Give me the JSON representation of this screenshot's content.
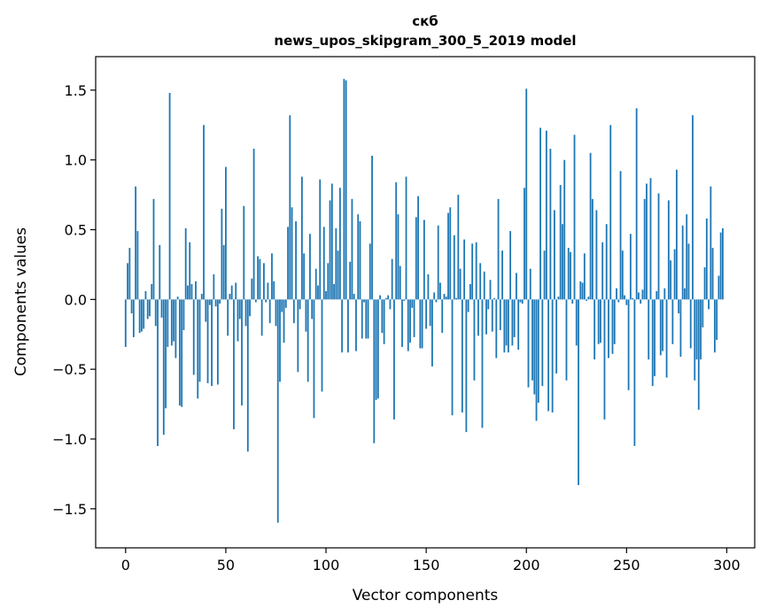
{
  "chart_data": {
    "type": "bar",
    "title_lines": [
      "скб",
      "news_upos_skipgram_300_5_2019 model"
    ],
    "xlabel": "Vector components",
    "ylabel": "Components values",
    "xlim": [
      -14.95,
      313.95
    ],
    "ylim": [
      -1.78,
      1.74
    ],
    "xticks": [
      0,
      50,
      100,
      150,
      200,
      250,
      300
    ],
    "xtick_labels": [
      "0",
      "50",
      "100",
      "150",
      "200",
      "250",
      "300"
    ],
    "yticks": [
      -1.5,
      -1.0,
      -0.5,
      0.0,
      0.5,
      1.0,
      1.5
    ],
    "ytick_labels": [
      "−1.5",
      "−1.0",
      "−0.5",
      "0.0",
      "0.5",
      "1.0",
      "1.5"
    ],
    "grid": false,
    "bar_color": "#1f77b4",
    "x_start": 0,
    "values": [
      -0.34,
      0.26,
      0.37,
      -0.1,
      -0.27,
      0.81,
      0.49,
      -0.24,
      -0.23,
      -0.21,
      0.06,
      -0.14,
      -0.12,
      0.11,
      0.72,
      -0.19,
      -1.05,
      0.39,
      -0.13,
      -0.97,
      -0.78,
      -0.34,
      1.48,
      -0.33,
      -0.3,
      -0.42,
      0.02,
      -0.76,
      -0.77,
      -0.22,
      0.51,
      0.1,
      0.41,
      0.11,
      -0.54,
      0.13,
      -0.71,
      -0.59,
      0.04,
      1.25,
      -0.16,
      -0.6,
      -0.04,
      -0.62,
      0.18,
      -0.05,
      -0.61,
      -0.03,
      0.65,
      0.39,
      0.95,
      -0.26,
      0.04,
      0.1,
      -0.93,
      0.12,
      -0.3,
      -0.14,
      -0.76,
      0.67,
      -0.19,
      -1.09,
      -0.12,
      0.15,
      1.08,
      -0.02,
      0.31,
      0.29,
      -0.26,
      0.26,
      -0.02,
      0.12,
      -0.17,
      0.33,
      0.13,
      -0.19,
      -1.6,
      -0.59,
      -0.09,
      -0.31,
      -0.06,
      0.52,
      1.32,
      0.66,
      -0.17,
      0.56,
      -0.52,
      -0.07,
      0.88,
      0.33,
      -0.23,
      -0.59,
      0.47,
      -0.14,
      -0.85,
      0.22,
      0.1,
      0.86,
      -0.66,
      0.52,
      0.06,
      0.26,
      0.71,
      0.83,
      0.11,
      0.51,
      0.35,
      0.8,
      -0.38,
      1.58,
      1.57,
      -0.38,
      0.27,
      0.72,
      0.04,
      -0.37,
      0.61,
      0.56,
      -0.28,
      -0.02,
      -0.28,
      -0.28,
      0.4,
      1.03,
      -1.03,
      -0.72,
      -0.71,
      0.03,
      -0.24,
      -0.32,
      0.01,
      0.03,
      -0.07,
      0.29,
      -0.86,
      0.84,
      0.61,
      0.24,
      -0.34,
      -0.01,
      0.88,
      -0.37,
      -0.31,
      -0.06,
      -0.27,
      0.59,
      0.74,
      -0.35,
      -0.35,
      0.57,
      -0.21,
      0.18,
      -0.19,
      -0.48,
      0.05,
      -0.02,
      0.53,
      0.12,
      -0.24,
      0.04,
      0.02,
      0.62,
      0.66,
      -0.83,
      0.46,
      0.01,
      0.75,
      0.22,
      -0.81,
      0.43,
      -0.95,
      -0.09,
      0.11,
      0.4,
      -0.58,
      0.41,
      -0.26,
      0.26,
      -0.92,
      0.2,
      -0.25,
      -0.07,
      0.14,
      -0.23,
      0.01,
      -0.42,
      0.72,
      -0.22,
      0.35,
      -0.38,
      -0.33,
      -0.38,
      0.49,
      -0.33,
      -0.27,
      0.19,
      -0.36,
      -0.02,
      -0.03,
      0.8,
      1.51,
      -0.63,
      0.22,
      -0.58,
      -0.68,
      -0.87,
      -0.74,
      1.23,
      -0.62,
      0.35,
      1.21,
      -0.8,
      1.08,
      -0.81,
      0.64,
      -0.53,
      0.02,
      0.82,
      0.54,
      1.0,
      -0.58,
      0.37,
      0.34,
      -0.03,
      1.18,
      -0.33,
      -1.33,
      0.13,
      0.12,
      0.33,
      -0.01,
      0.02,
      1.05,
      0.72,
      -0.43,
      0.64,
      -0.32,
      -0.31,
      0.41,
      -0.86,
      0.54,
      -0.42,
      1.25,
      -0.39,
      -0.32,
      0.08,
      -0.02,
      0.92,
      0.35,
      0.03,
      -0.04,
      -0.65,
      0.47,
      0.01,
      -1.05,
      1.37,
      0.05,
      -0.03,
      0.07,
      0.72,
      0.83,
      -0.43,
      0.87,
      -0.62,
      -0.55,
      0.06,
      0.76,
      -0.4,
      -0.37,
      0.08,
      -0.56,
      0.71,
      0.28,
      -0.32,
      0.36,
      0.93,
      -0.1,
      -0.41,
      0.53,
      0.08,
      0.61,
      0.4,
      -0.35,
      1.32,
      -0.58,
      -0.43,
      -0.79,
      -0.43,
      -0.2,
      0.23,
      0.58,
      -0.07,
      0.81,
      0.37,
      -0.38,
      -0.29,
      0.17,
      0.48,
      0.51
    ]
  }
}
